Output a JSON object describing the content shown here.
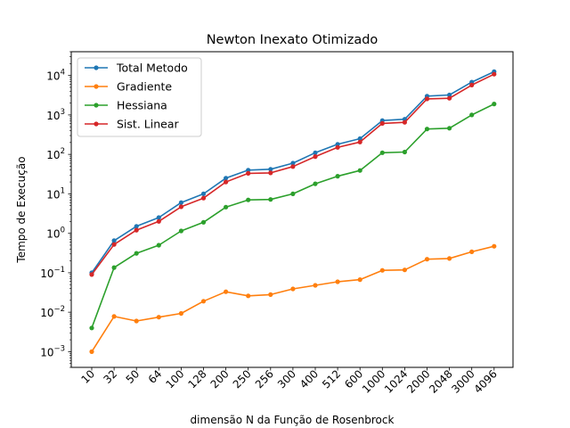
{
  "chart_data": {
    "type": "line",
    "title": "Newton Inexato Otimizado",
    "xlabel": "dimensão N da Função de Rosenbrock",
    "ylabel": "Tempo de Execução",
    "yscale": "log",
    "ylim": [
      0.0004,
      40000
    ],
    "ytick_values": [
      0.001,
      0.01,
      0.1,
      1,
      10,
      100,
      1000,
      10000
    ],
    "ytick_labels": [
      {
        "base": "10",
        "exp": "−3"
      },
      {
        "base": "10",
        "exp": "−2"
      },
      {
        "base": "10",
        "exp": "−1"
      },
      {
        "base": "10",
        "exp": "0"
      },
      {
        "base": "10",
        "exp": "1"
      },
      {
        "base": "10",
        "exp": "2"
      },
      {
        "base": "10",
        "exp": "3"
      },
      {
        "base": "10",
        "exp": "4"
      }
    ],
    "categories": [
      "10",
      "32",
      "50",
      "64",
      "100",
      "128",
      "200",
      "250",
      "256",
      "300",
      "400",
      "512",
      "600",
      "1000",
      "1024",
      "2000",
      "2048",
      "3000",
      "4096"
    ],
    "legend_position": "upper-left",
    "grid": false,
    "series": [
      {
        "name": "Total Metodo",
        "color": "#1f77b4",
        "values": [
          0.1,
          0.65,
          1.5,
          2.5,
          6.0,
          10,
          25,
          40,
          42,
          60,
          110,
          180,
          250,
          720,
          780,
          3000,
          3200,
          6800,
          12500
        ]
      },
      {
        "name": "Gradiente",
        "color": "#ff7f0e",
        "values": [
          0.001,
          0.0078,
          0.006,
          0.0075,
          0.0093,
          0.019,
          0.033,
          0.026,
          0.028,
          0.039,
          0.048,
          0.059,
          0.067,
          0.115,
          0.118,
          0.22,
          0.23,
          0.34,
          0.47
        ]
      },
      {
        "name": "Hessiana",
        "color": "#2ca02c",
        "values": [
          0.004,
          0.135,
          0.31,
          0.5,
          1.15,
          1.9,
          4.6,
          7.0,
          7.2,
          10,
          18,
          28,
          39,
          110,
          115,
          440,
          460,
          1000,
          1900
        ]
      },
      {
        "name": "Sist. Linear",
        "color": "#d62728",
        "values": [
          0.09,
          0.52,
          1.2,
          2.0,
          4.7,
          7.8,
          20,
          33,
          34,
          49,
          88,
          150,
          205,
          610,
          650,
          2550,
          2650,
          5700,
          10800
        ]
      }
    ]
  }
}
